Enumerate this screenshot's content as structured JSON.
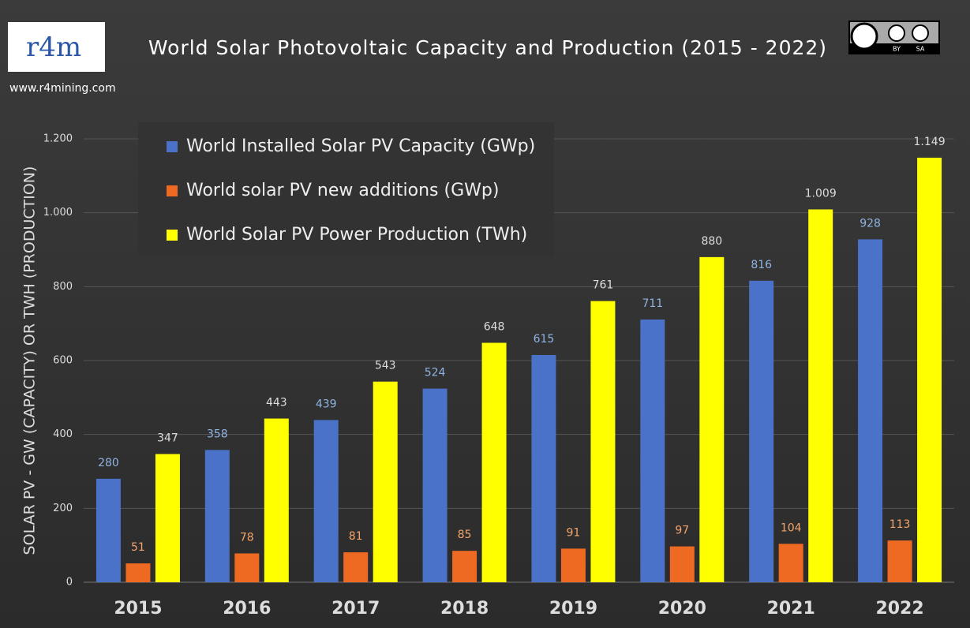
{
  "chart_data": {
    "type": "bar",
    "title": "World Solar Photovoltaic Capacity and Production (2015 - 2022)",
    "logo_text": "r4m",
    "website": "www.r4mining.com",
    "license_badge": [
      "BY",
      "SA"
    ],
    "ylabel": "SOLAR PV - GW (CAPACITY)  OR TWH (PRODUCTION)",
    "categories": [
      "2015",
      "2016",
      "2017",
      "2018",
      "2019",
      "2020",
      "2021",
      "2022"
    ],
    "series": [
      {
        "name": "World Installed Solar PV Capacity (GWp)",
        "color": "#4a72c8",
        "label_color": "#8fb4e3",
        "values": [
          280,
          358,
          439,
          524,
          615,
          711,
          816,
          928
        ]
      },
      {
        "name": "World solar PV new additions (GWp)",
        "color": "#ee6a22",
        "label_color": "#f4a46a",
        "values": [
          51,
          78,
          81,
          85,
          91,
          97,
          104,
          113
        ]
      },
      {
        "name": "World Solar PV Power Production (TWh)",
        "color": "#ffff00",
        "label_color": "#dddddd",
        "values": [
          347,
          443,
          543,
          648,
          761,
          880,
          1009,
          1149
        ],
        "value_labels": [
          "347",
          "443",
          "543",
          "648",
          "761",
          "880",
          "1.009",
          "1.149"
        ]
      }
    ],
    "ylim": [
      0,
      1200
    ],
    "yticks": [
      0,
      200,
      400,
      600,
      800,
      {
        "value": 1000,
        "label": "1.000"
      },
      {
        "value": 1200,
        "label": "1.200"
      }
    ],
    "grid": true
  }
}
